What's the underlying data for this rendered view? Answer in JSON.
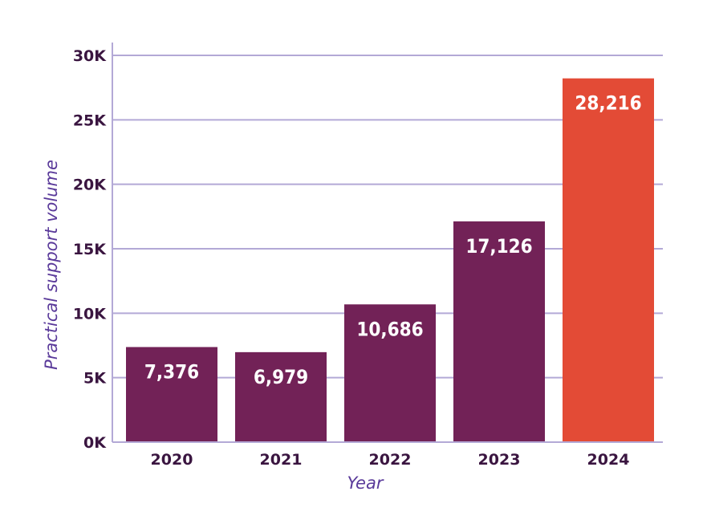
{
  "chart_data": {
    "type": "bar",
    "categories": [
      "2020",
      "2021",
      "2022",
      "2023",
      "2024"
    ],
    "values": [
      7376,
      6979,
      10686,
      17126,
      28216
    ],
    "value_labels": [
      "7,376",
      "6,979",
      "10,686",
      "17,126",
      "28,216"
    ],
    "xlabel": "Year",
    "ylabel": "Practical support volume",
    "ylim": [
      0,
      30000
    ],
    "yticks": [
      0,
      5000,
      10000,
      15000,
      20000,
      25000,
      30000
    ],
    "ytick_labels": [
      "0K",
      "5K",
      "10K",
      "15K",
      "20K",
      "25K",
      "30K"
    ],
    "grid": "horizontal",
    "colors": {
      "bar": "#722257",
      "highlight": "#e34b36",
      "grid": "#b3a9d6",
      "text": "#3a1540",
      "axis_title": "#5a3a9a"
    },
    "highlight_category": "2024"
  }
}
